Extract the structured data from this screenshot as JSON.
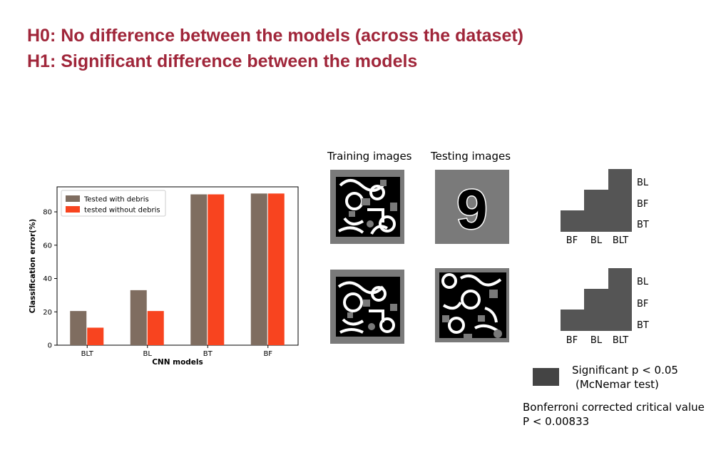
{
  "headings": {
    "h0": "H0: No difference between the models (across the dataset)",
    "h1": "H1: Significant difference between the models"
  },
  "chart_data": {
    "type": "bar",
    "categories": [
      "BLT",
      "BL",
      "BT",
      "BF"
    ],
    "series": [
      {
        "name": "Tested with debris",
        "values": [
          20.5,
          33,
          90.5,
          91
        ],
        "color": "#7f6d60"
      },
      {
        "name": "tested without debris",
        "values": [
          10.5,
          20.5,
          90.5,
          91
        ],
        "color": "#f8441f"
      }
    ],
    "xlabel": "CNN models",
    "ylabel": "Classification error(%)",
    "ylim": [
      0,
      95
    ],
    "yticks": [
      0,
      20,
      40,
      60,
      80
    ],
    "legend_position": "top-left",
    "grid": false
  },
  "images": {
    "training_title": "Training images",
    "testing_title": "Testing images",
    "digit": "9"
  },
  "significance": {
    "top": {
      "row_labels": [
        "BL",
        "BF",
        "BT"
      ],
      "col_labels": [
        "BF",
        "BL",
        "BLT"
      ]
    },
    "bottom": {
      "row_labels": [
        "BL",
        "BF",
        "BT"
      ],
      "col_labels": [
        "BF",
        "BL",
        "BLT"
      ]
    },
    "color": "#555555"
  },
  "legend": {
    "line1": "Significant p < 0.05",
    "line2": "(McNemar test)",
    "color": "#444444"
  },
  "note": {
    "line1": "Bonferroni corrected critical value",
    "line2": "P < 0.00833"
  }
}
